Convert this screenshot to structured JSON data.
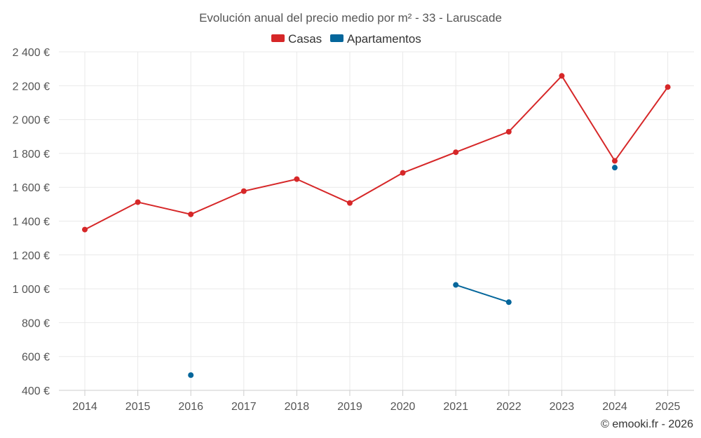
{
  "chart_data": {
    "type": "line",
    "title": "Evolución anual del precio medio por m² - 33 - Laruscade",
    "x": [
      "2014",
      "2015",
      "2016",
      "2017",
      "2018",
      "2019",
      "2020",
      "2021",
      "2022",
      "2023",
      "2024",
      "2025"
    ],
    "ylim": [
      400,
      2400
    ],
    "yticks": [
      400,
      600,
      800,
      1000,
      1200,
      1400,
      1600,
      1800,
      2000,
      2200,
      2400
    ],
    "ytick_labels": [
      "400 €",
      "600 €",
      "800 €",
      "1 000 €",
      "1 200 €",
      "1 400 €",
      "1 600 €",
      "1 800 €",
      "2 000 €",
      "2 200 €",
      "2 400 €"
    ],
    "grid": true,
    "legend_position": "top-center",
    "series": [
      {
        "name": "Casas",
        "color": "#d62728",
        "values": [
          1350,
          1512,
          1440,
          1577,
          1648,
          1507,
          1685,
          1807,
          1928,
          2258,
          1756,
          2192
        ]
      },
      {
        "name": "Apartamentos",
        "color": "#04669b",
        "values": [
          null,
          null,
          490,
          null,
          null,
          null,
          null,
          1023,
          921,
          null,
          1716,
          null
        ]
      }
    ],
    "credit": "© emooki.fr - 2026"
  }
}
